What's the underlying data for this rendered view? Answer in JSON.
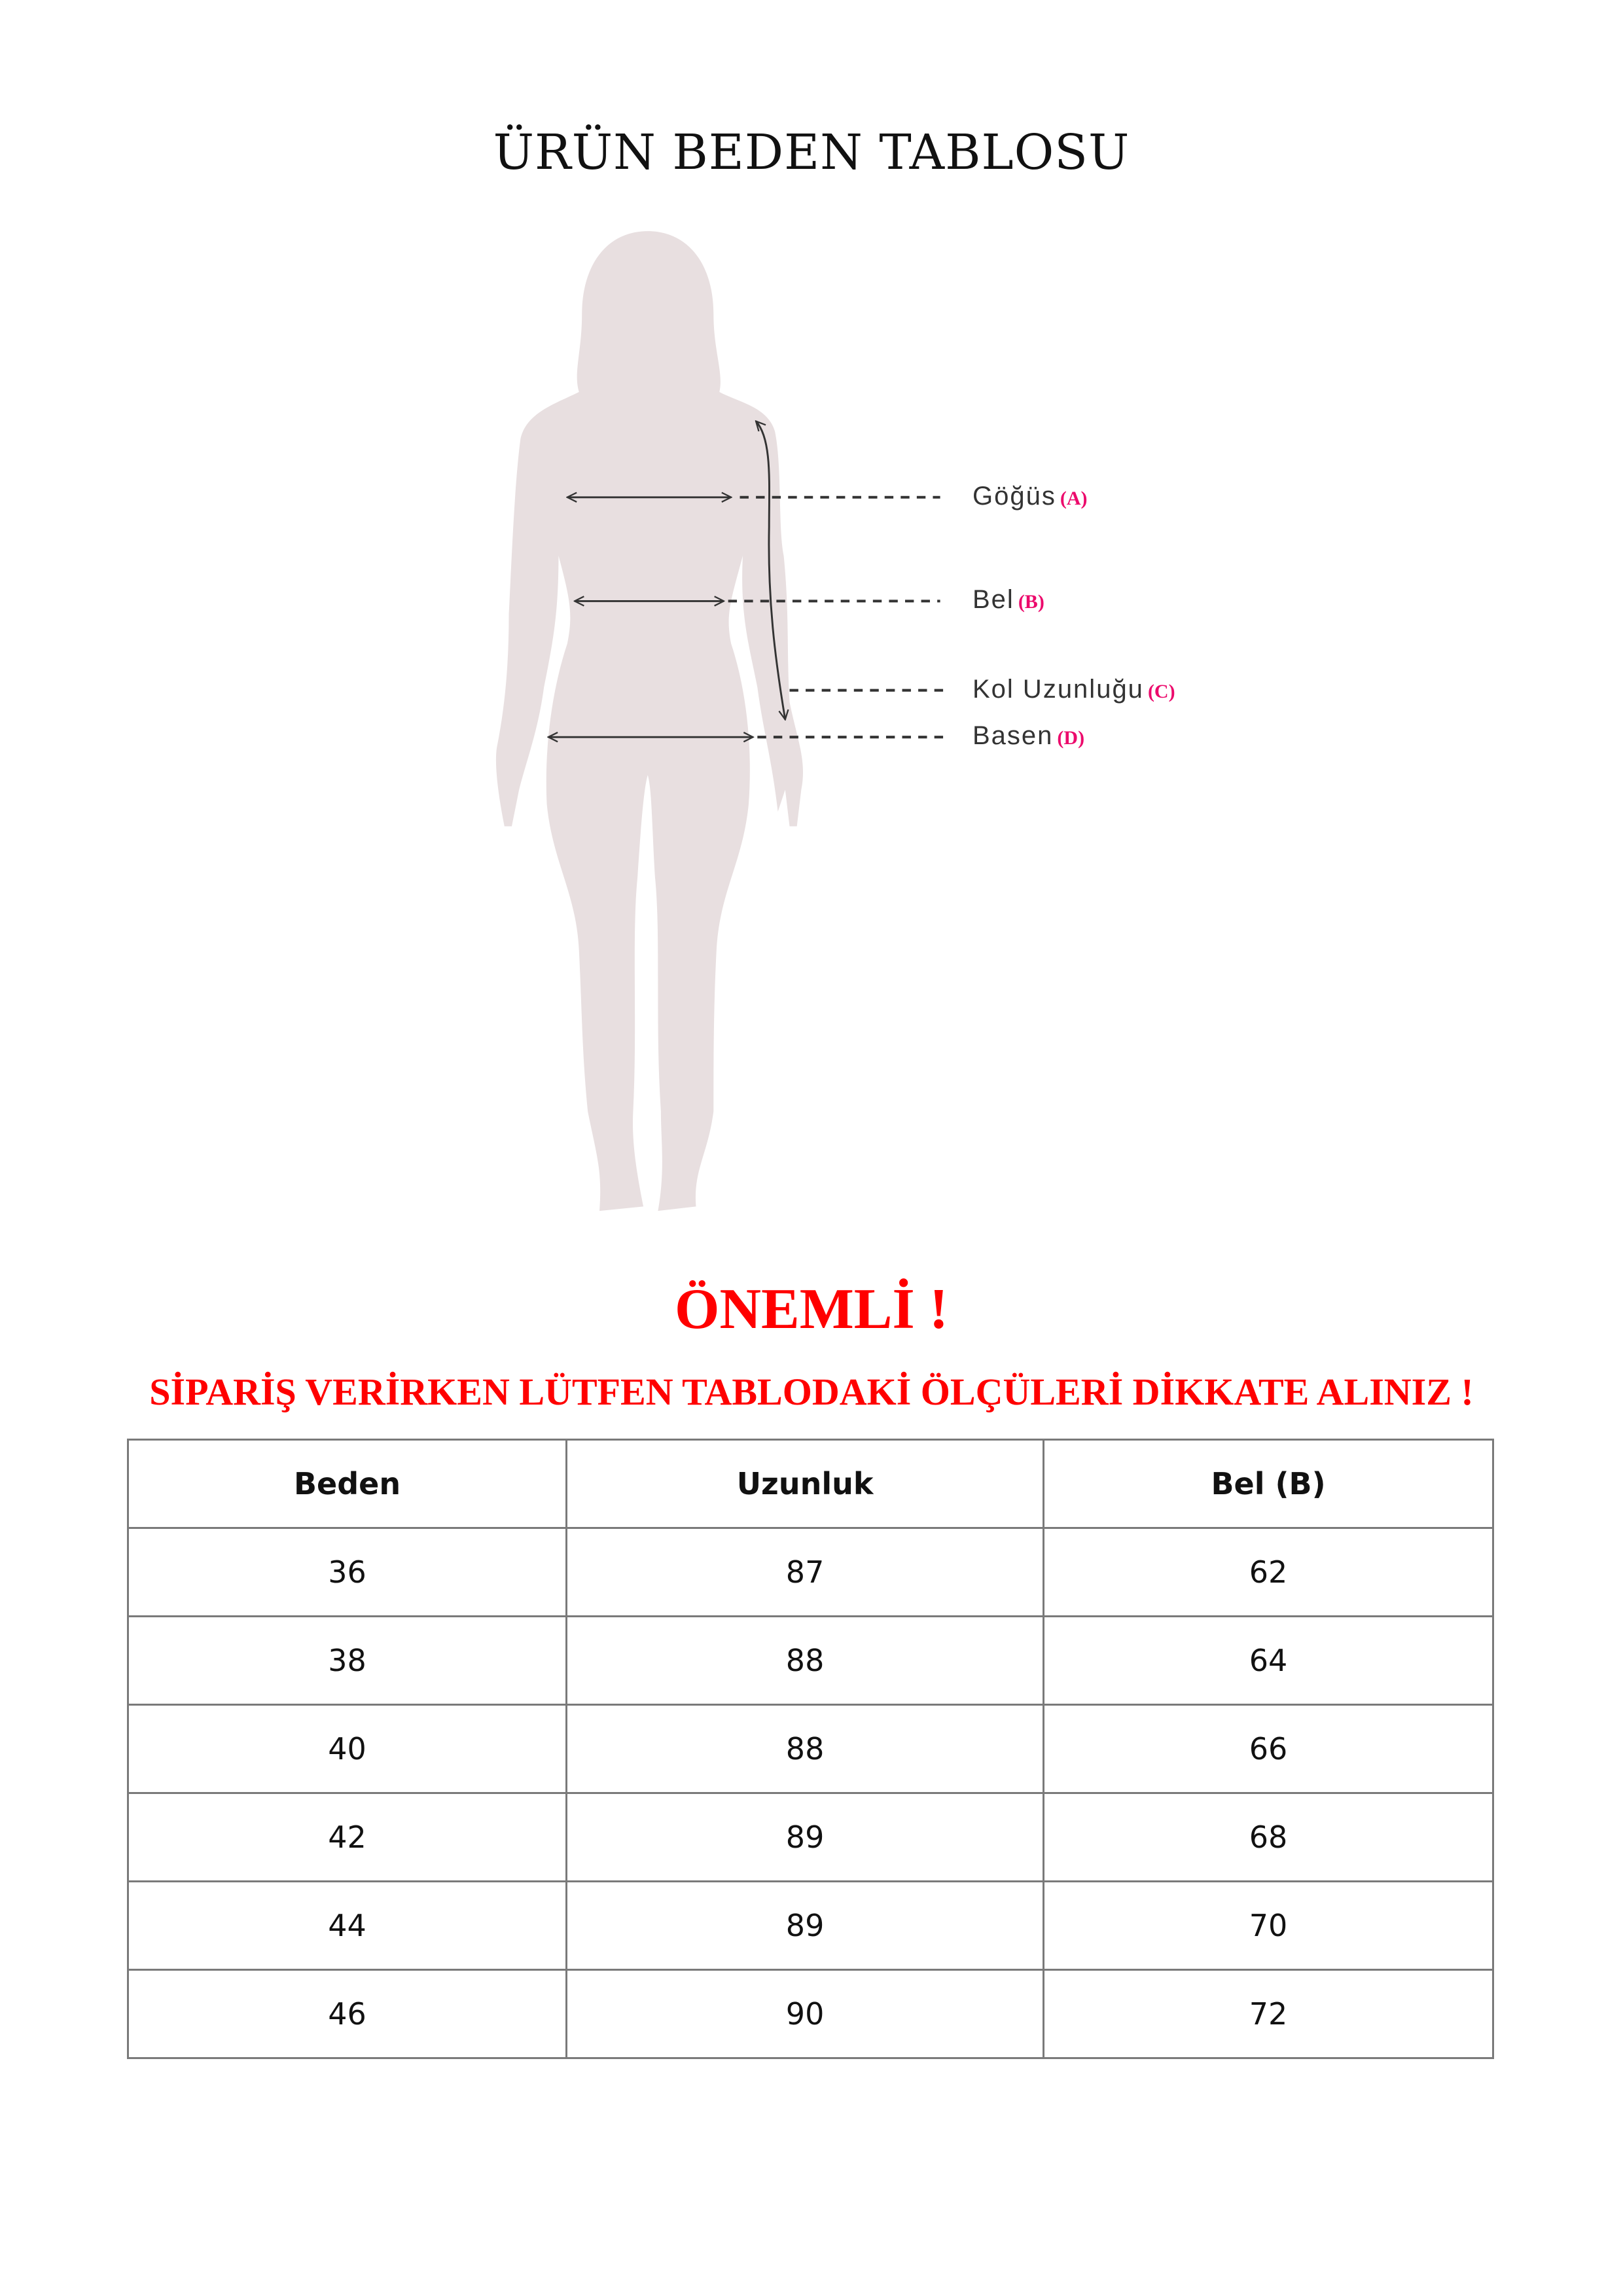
{
  "title": "ÜRÜN BEDEN TABLOSU",
  "figure": {
    "silhouette_color": "#e8dfe0",
    "labels": [
      {
        "text": "Göğüs",
        "mark": "(A)"
      },
      {
        "text": "Bel",
        "mark": "(B)"
      },
      {
        "text": "Kol Uzunluğu",
        "mark": "(C)"
      },
      {
        "text": "Basen",
        "mark": "(D)"
      }
    ],
    "mark_color": "#ec0a6c"
  },
  "warning": {
    "heading": "ÖNEMLİ !",
    "message": "SİPARİŞ VERİRKEN LÜTFEN TABLODAKİ ÖLÇÜLERİ DİKKATE ALINIZ !",
    "color": "#ff0000"
  },
  "table": {
    "headers": [
      "Beden",
      "Uzunluk",
      "Bel (B)"
    ],
    "rows": [
      [
        "36",
        "87",
        "62"
      ],
      [
        "38",
        "88",
        "64"
      ],
      [
        "40",
        "88",
        "66"
      ],
      [
        "42",
        "89",
        "68"
      ],
      [
        "44",
        "89",
        "70"
      ],
      [
        "46",
        "90",
        "72"
      ]
    ]
  }
}
